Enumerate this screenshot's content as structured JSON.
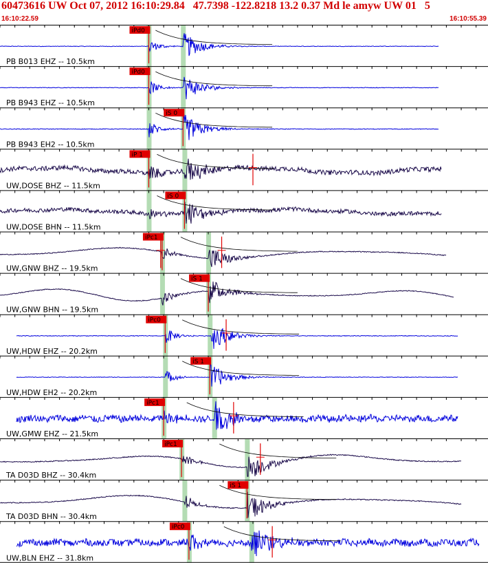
{
  "header": {
    "title": "60473616 UW Oct 07, 2012 16:10:29.84   47.7398 -122.8218 13.2 0.37 Md le amyw UW 01   5",
    "start_time": "16:10:22.59",
    "end_time": "16:10:55.39"
  },
  "colors": {
    "header_red": "#d10000",
    "pick_box": "#e00000",
    "pick_bar": "#b4dcb4",
    "trace_blue": "#0000dd",
    "trace_navy": "#1a0a4a",
    "grid": "#000000",
    "theory_curve": "#000000",
    "red_marker": "#e00000"
  },
  "chart_data": {
    "type": "line",
    "title": "60473616 UW Oct 07, 2012 16:10:29.84   47.7398 -122.8218 13.2 0.37 Md le amyw UW 01   5",
    "x_axis": {
      "start": "16:10:22.59",
      "end": "16:10:55.39",
      "tick_interval_s": 1
    },
    "series": [
      {
        "label": "PB B013 EHZ -- 10.5km",
        "color": "blue",
        "style": "hf",
        "amp": 0.7,
        "pick": {
          "label": "iPd0",
          "t_s": 10.0
        },
        "arrivals_s": [
          10.0,
          12.3
        ],
        "end_s": 29.5,
        "markers_s": []
      },
      {
        "label": "PB B943 EHZ -- 10.5km",
        "color": "blue",
        "style": "hf",
        "amp": 0.7,
        "pick": {
          "label": "iPd0",
          "t_s": 10.0
        },
        "arrivals_s": [
          10.0,
          12.3
        ],
        "end_s": 29.5,
        "markers_s": []
      },
      {
        "label": "PB B943 EH2 -- 10.5km",
        "color": "blue",
        "style": "hf",
        "amp": 0.8,
        "pick": {
          "label": "iS 0",
          "t_s": 12.3
        },
        "arrivals_s": [
          10.0,
          12.3
        ],
        "end_s": 29.5,
        "markers_s": []
      },
      {
        "label": "UW,DOSE BHZ -- 11.5km",
        "color": "navy",
        "style": "noisy",
        "amp": 0.8,
        "pick": {
          "label": "iP 1",
          "t_s": 10.0
        },
        "arrivals_s": [
          10.0,
          12.4
        ],
        "end_s": 29.7,
        "markers_s": [
          17.0
        ]
      },
      {
        "label": "UW,DOSE BHN -- 11.5km",
        "color": "navy",
        "style": "noisy",
        "amp": 0.7,
        "pick": {
          "label": "iS 0",
          "t_s": 12.4
        },
        "arrivals_s": [
          10.0,
          12.4
        ],
        "end_s": 29.7,
        "markers_s": []
      },
      {
        "label": "UW,GNW BHZ -- 19.5km",
        "color": "navy",
        "style": "long",
        "amp": 0.7,
        "pick": {
          "label": "iPc1",
          "t_s": 10.9
        },
        "arrivals_s": [
          10.9,
          14.0
        ],
        "end_s": 30.0,
        "markers_s": [
          10.8,
          14.9
        ]
      },
      {
        "label": "UW,GNW BHN -- 19.5km",
        "color": "navy",
        "style": "long",
        "amp": 0.7,
        "pick": {
          "label": "iS 1",
          "t_s": 14.0
        },
        "arrivals_s": [
          10.9,
          14.0
        ],
        "end_s": 30.5,
        "markers_s": []
      },
      {
        "label": "UW,HDW EHZ -- 20.2km",
        "color": "blue",
        "style": "hf",
        "amp": 0.8,
        "pick": {
          "label": "iPc0",
          "t_s": 11.1
        },
        "arrivals_s": [
          11.1,
          14.1
        ],
        "end_s": 30.8,
        "markers_s": [
          15.2
        ]
      },
      {
        "label": "UW,HDW EH2 -- 20.2km",
        "color": "blue",
        "style": "hf",
        "amp": 0.7,
        "pick": {
          "label": "iS 1",
          "t_s": 14.1
        },
        "arrivals_s": [
          11.1,
          14.1
        ],
        "end_s": 30.8,
        "markers_s": []
      },
      {
        "label": "UW,GMW EHZ -- 21.5km",
        "color": "blue",
        "style": "hfnoisy",
        "amp": 0.9,
        "pick": {
          "label": "iPc1",
          "t_s": 11.0
        },
        "arrivals_s": [
          11.0,
          14.4
        ],
        "end_s": 30.8,
        "markers_s": [
          15.7
        ]
      },
      {
        "label": "TA D03D BHZ -- 30.4km",
        "color": "navy",
        "style": "long",
        "amp": 0.8,
        "pick": {
          "label": "iPc1",
          "t_s": 12.2
        },
        "arrivals_s": [
          12.2,
          16.6
        ],
        "end_s": 31.0,
        "markers_s": [
          17.5
        ]
      },
      {
        "label": "TA D03D BHN -- 30.4km",
        "color": "navy",
        "style": "long",
        "amp": 0.8,
        "pick": {
          "label": "iS 1",
          "t_s": 16.6
        },
        "arrivals_s": [
          12.4,
          16.6
        ],
        "end_s": 31.0,
        "markers_s": []
      },
      {
        "label": "UW,BLN EHZ -- 31.8km",
        "color": "blue",
        "style": "hfnoisy",
        "amp": 0.9,
        "pick": {
          "label": "iPc0",
          "t_s": 12.7
        },
        "arrivals_s": [
          12.7,
          16.9
        ],
        "end_s": 32.2,
        "markers_s": [
          18.3
        ]
      }
    ]
  }
}
